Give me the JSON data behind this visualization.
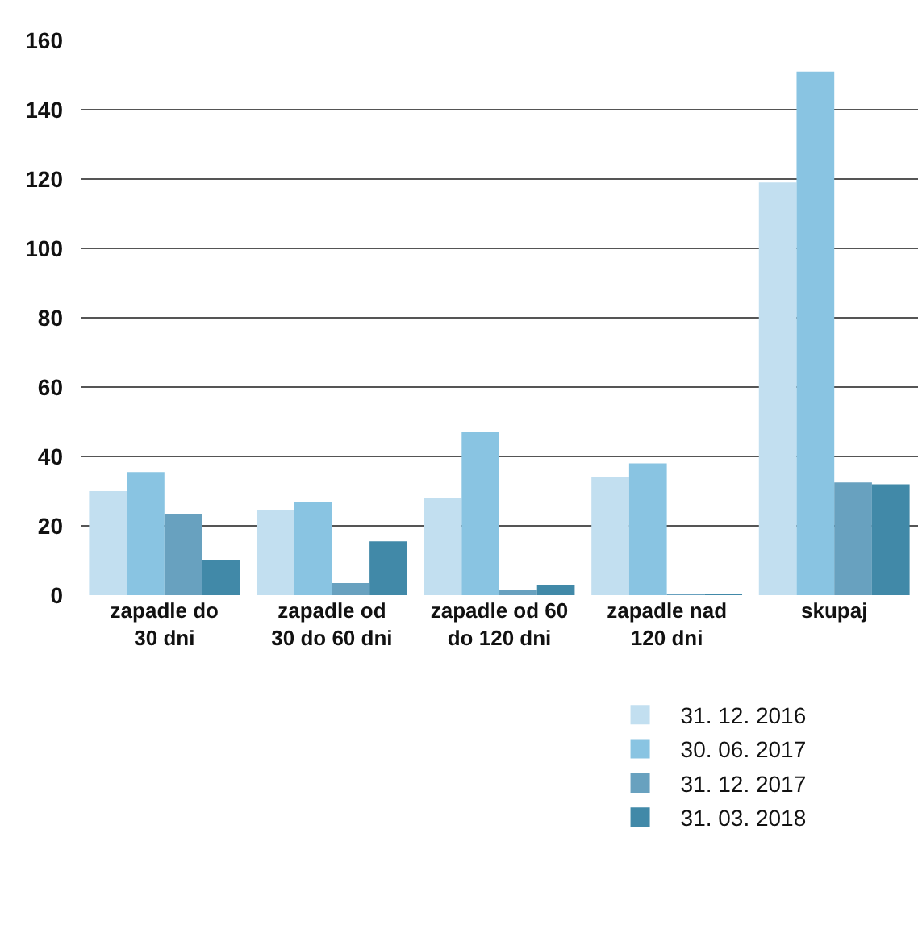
{
  "chart_data": {
    "type": "bar",
    "categories": [
      "zapadle do\n30 dni",
      "zapadle od\n30 do 60 dni",
      "zapadle od 60\ndo 120 dni",
      "zapadle nad\n120 dni",
      "skupaj"
    ],
    "series": [
      {
        "name": "31. 12. 2016",
        "color": "#c2dff0",
        "values": [
          30,
          24.5,
          28,
          34,
          119
        ]
      },
      {
        "name": "30. 06. 2017",
        "color": "#89c4e2",
        "values": [
          35.5,
          27,
          47,
          38,
          151
        ]
      },
      {
        "name": "31. 12. 2017",
        "color": "#68a1bf",
        "values": [
          23.5,
          3.5,
          1.5,
          0.2,
          32.5
        ]
      },
      {
        "name": "31. 03. 2018",
        "color": "#4189a8",
        "values": [
          10,
          15.5,
          3,
          0.2,
          32
        ]
      }
    ],
    "ylim": [
      0,
      160
    ],
    "yticks": [
      0,
      20,
      40,
      60,
      80,
      100,
      120,
      140,
      160
    ],
    "grid": "y",
    "legend": "bottom right"
  }
}
